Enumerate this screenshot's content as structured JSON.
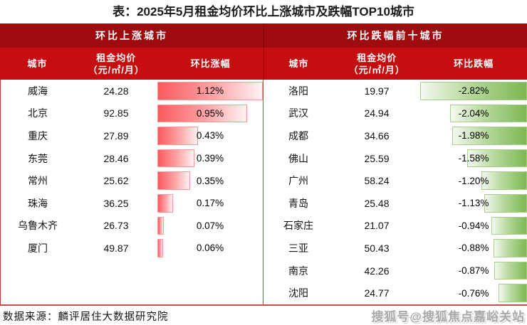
{
  "title": "表：2025年5月租金均价环比上涨城市及跌幅TOP10城市",
  "colors": {
    "header_dark_red": "#9e0c10",
    "header_bright_red": "#c40e10",
    "increase_bar_red": "#fa5a5e",
    "decrease_bar_green": "#7cb852",
    "grid_line_red": "#c23b3b"
  },
  "left_panel": {
    "header": "环比上涨城市",
    "columns": {
      "city": "城市",
      "rent_line1": "租金均价",
      "rent_line2": "（元/㎡/月）",
      "rate": "环比涨幅"
    },
    "max_rate": 1.12,
    "rows": [
      {
        "city": "威海",
        "rent": "24.28",
        "rate": "1.12%",
        "value": 1.12
      },
      {
        "city": "北京",
        "rent": "92.85",
        "rate": "0.95%",
        "value": 0.95
      },
      {
        "city": "重庆",
        "rent": "27.89",
        "rate": "0.43%",
        "value": 0.43
      },
      {
        "city": "东莞",
        "rent": "28.46",
        "rate": "0.39%",
        "value": 0.39
      },
      {
        "city": "常州",
        "rent": "25.62",
        "rate": "0.35%",
        "value": 0.35
      },
      {
        "city": "珠海",
        "rent": "36.25",
        "rate": "0.17%",
        "value": 0.17
      },
      {
        "city": "乌鲁木齐",
        "rent": "26.73",
        "rate": "0.07%",
        "value": 0.07
      },
      {
        "city": "厦门",
        "rent": "49.87",
        "rate": "0.06%",
        "value": 0.06
      }
    ]
  },
  "right_panel": {
    "header": "环比跌幅前十城市",
    "columns": {
      "city": "城市",
      "rent_line1": "租金均价",
      "rent_line2": "（元/㎡/月）",
      "rate": "环比跌幅"
    },
    "max_rate": 2.82,
    "rows": [
      {
        "city": "洛阳",
        "rent": "19.97",
        "rate": "-2.82%",
        "value": 2.82
      },
      {
        "city": "武汉",
        "rent": "24.94",
        "rate": "-2.04%",
        "value": 2.04
      },
      {
        "city": "成都",
        "rent": "34.66",
        "rate": "-1.98%",
        "value": 1.98
      },
      {
        "city": "佛山",
        "rent": "25.59",
        "rate": "-1.58%",
        "value": 1.58
      },
      {
        "city": "广州",
        "rent": "58.24",
        "rate": "-1.20%",
        "value": 1.2
      },
      {
        "city": "青岛",
        "rent": "25.48",
        "rate": "-1.13%",
        "value": 1.13
      },
      {
        "city": "石家庄",
        "rent": "21.07",
        "rate": "-0.94%",
        "value": 0.94
      },
      {
        "city": "三亚",
        "rent": "50.43",
        "rate": "-0.88%",
        "value": 0.88
      },
      {
        "city": "南京",
        "rent": "42.26",
        "rate": "-0.87%",
        "value": 0.87
      },
      {
        "city": "沈阳",
        "rent": "24.77",
        "rate": "-0.76%",
        "value": 0.76
      }
    ]
  },
  "footer": {
    "source": "数据来源：麟评居住大数据研究院",
    "watermark": "搜狐号@搜狐焦点嘉峪关站"
  },
  "chart_data": [
    {
      "type": "table",
      "title": "环比上涨城市",
      "columns": [
        "城市",
        "租金均价（元/㎡/月）",
        "环比涨幅"
      ],
      "bar_style": "red gradient data bars, left-anchored, scaled to max 1.12%",
      "rows": [
        [
          "威海",
          24.28,
          "1.12%"
        ],
        [
          "北京",
          92.85,
          "0.95%"
        ],
        [
          "重庆",
          27.89,
          "0.43%"
        ],
        [
          "东莞",
          28.46,
          "0.39%"
        ],
        [
          "常州",
          25.62,
          "0.35%"
        ],
        [
          "珠海",
          36.25,
          "0.17%"
        ],
        [
          "乌鲁木齐",
          26.73,
          "0.07%"
        ],
        [
          "厦门",
          49.87,
          "0.06%"
        ]
      ]
    },
    {
      "type": "table",
      "title": "环比跌幅前十城市",
      "columns": [
        "城市",
        "租金均价（元/㎡/月）",
        "环比跌幅"
      ],
      "bar_style": "green gradient data bars, right-anchored, scaled to max |−2.82%|",
      "rows": [
        [
          "洛阳",
          19.97,
          "-2.82%"
        ],
        [
          "武汉",
          24.94,
          "-2.04%"
        ],
        [
          "成都",
          34.66,
          "-1.98%"
        ],
        [
          "佛山",
          25.59,
          "-1.58%"
        ],
        [
          "广州",
          58.24,
          "-1.20%"
        ],
        [
          "青岛",
          25.48,
          "-1.13%"
        ],
        [
          "石家庄",
          21.07,
          "-0.94%"
        ],
        [
          "三亚",
          50.43,
          "-0.88%"
        ],
        [
          "南京",
          42.26,
          "-0.87%"
        ],
        [
          "沈阳",
          24.77,
          "-0.76%"
        ]
      ]
    }
  ]
}
